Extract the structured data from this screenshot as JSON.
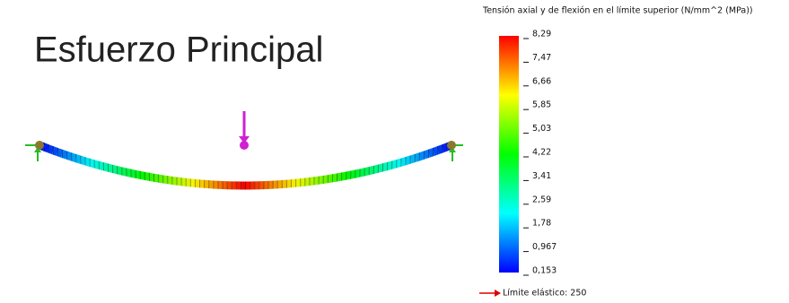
{
  "title": "Esfuerzo Principal",
  "legend": {
    "title": "Tensión axial y de flexión en el límite superior (N/mm^2 (MPa))",
    "ticks": [
      "8,29",
      "7,47",
      "6,66",
      "5,85",
      "5,03",
      "4,22",
      "3,41",
      "2,59",
      "1,78",
      "0,967",
      "0,153"
    ]
  },
  "yield_label": "Límite elástico: 250"
}
